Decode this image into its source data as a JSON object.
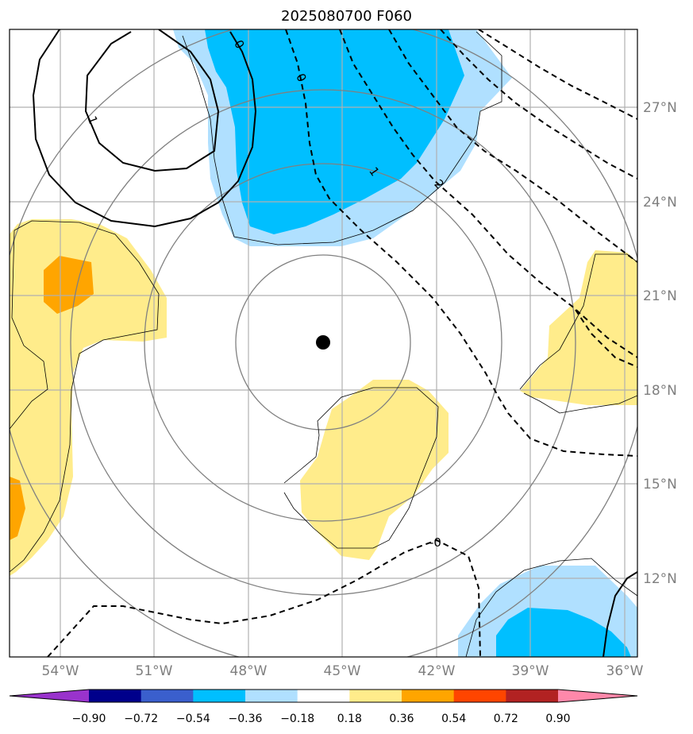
{
  "title": "2025080700 F060",
  "chart_data": {
    "type": "map",
    "title": "2025080700 F060",
    "lon_range": [
      -56.5,
      -36.0
    ],
    "lat_range": [
      9.5,
      29.5
    ],
    "lon_ticks": [
      "54°W",
      "51°W",
      "48°W",
      "45°W",
      "42°W",
      "39°W",
      "36°W"
    ],
    "lat_ticks": [
      "27°N",
      "24°N",
      "21°N",
      "18°N",
      "15°N",
      "12°N"
    ],
    "grid": true,
    "center_marker": {
      "lon": -45.7,
      "lat": 19.5
    },
    "colorbar": {
      "ticks": [
        "−0.90",
        "−0.72",
        "−0.54",
        "−0.36",
        "−0.18",
        "0.18",
        "0.36",
        "0.54",
        "0.72",
        "0.90"
      ],
      "colors": [
        "#9933cc",
        "#00008b",
        "#3a5fcd",
        "#00bfff",
        "#b0e0ff",
        "#ffffff",
        "#ffec8b",
        "#ffa500",
        "#ff4500",
        "#b22222",
        "#ff88aa"
      ]
    },
    "contour_labels": [
      "1",
      "0",
      "0",
      "1",
      "2",
      "-0"
    ]
  }
}
